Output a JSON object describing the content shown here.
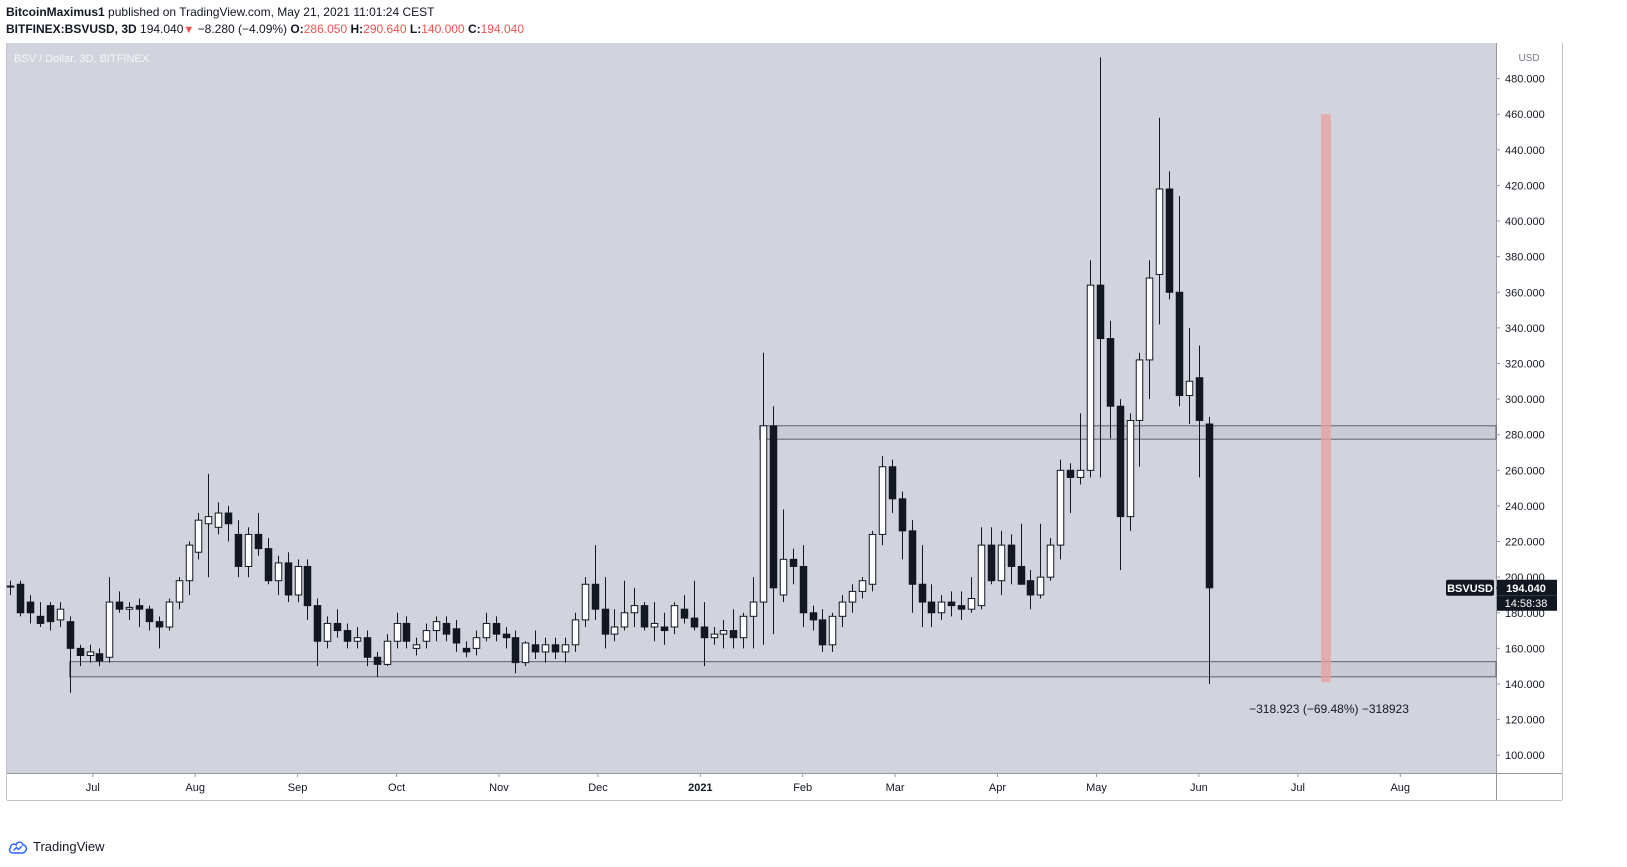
{
  "header": {
    "author": "BitcoinMaximus1",
    "published_text": "published on TradingView.com, May 21, 2021 11:01:24 CEST",
    "symbol": "BITFINEX:BSVUSD, 3D",
    "last": "194.040",
    "change": "−8.280 (−4.09%)",
    "o_label": "O:",
    "o_value": "286.050",
    "h_label": "H:",
    "h_value": "290.640",
    "l_label": "L:",
    "l_value": "140.000",
    "c_label": "C:",
    "c_value": "194.040"
  },
  "footer": {
    "brand": "TradingView"
  },
  "colors": {
    "plot_bg": "#d1d4dc",
    "candle_up_fill": "#ffffff",
    "candle_down_fill": "#131722",
    "candle_border": "#131722",
    "zone_fill": "#c9ccd4",
    "zone_border": "#434651",
    "red_zone": "#e8a0a2",
    "label_bg": "#131722",
    "label_text": "#ffffff"
  },
  "chart_data": {
    "type": "candlestick",
    "title": "BSV / Dollar, 3D, BITFINEX",
    "axis_unit": "USD",
    "ylim": [
      90,
      500
    ],
    "y_ticks": [
      100,
      120,
      140,
      160,
      180,
      200,
      220,
      240,
      260,
      280,
      300,
      320,
      340,
      360,
      380,
      400,
      420,
      440,
      460,
      480
    ],
    "y_tick_labels": [
      "100.000",
      "120.000",
      "140.000",
      "160.000",
      "180.000",
      "200.000",
      "220.000",
      "240.000",
      "260.000",
      "280.000",
      "300.000",
      "320.000",
      "340.000",
      "360.000",
      "380.000",
      "400.000",
      "420.000",
      "440.000",
      "460.000",
      "480.000"
    ],
    "x_range": [
      "2020-06-05",
      "2021-08-30"
    ],
    "x_ticks": [
      {
        "label": "Jul",
        "date": "2020-07-01"
      },
      {
        "label": "Aug",
        "date": "2020-08-01"
      },
      {
        "label": "Sep",
        "date": "2020-09-01"
      },
      {
        "label": "Oct",
        "date": "2020-10-01"
      },
      {
        "label": "Nov",
        "date": "2020-11-01"
      },
      {
        "label": "Dec",
        "date": "2020-12-01"
      },
      {
        "label": "2021",
        "date": "2021-01-01"
      },
      {
        "label": "Feb",
        "date": "2021-02-01"
      },
      {
        "label": "Mar",
        "date": "2021-03-01"
      },
      {
        "label": "Apr",
        "date": "2021-04-01"
      },
      {
        "label": "May",
        "date": "2021-05-01"
      },
      {
        "label": "Jun",
        "date": "2021-06-01"
      },
      {
        "label": "Jul",
        "date": "2021-07-01"
      },
      {
        "label": "Aug",
        "date": "2021-08-01"
      }
    ],
    "candles": [
      {
        "date": "2020-06-06",
        "o": 195,
        "h": 198,
        "l": 190,
        "c": 195
      },
      {
        "date": "2020-06-09",
        "o": 196,
        "h": 198,
        "l": 178,
        "c": 180
      },
      {
        "date": "2020-06-12",
        "o": 186,
        "h": 190,
        "l": 174,
        "c": 180
      },
      {
        "date": "2020-06-15",
        "o": 178,
        "h": 186,
        "l": 172,
        "c": 174
      },
      {
        "date": "2020-06-18",
        "o": 184,
        "h": 186,
        "l": 170,
        "c": 175
      },
      {
        "date": "2020-06-21",
        "o": 176,
        "h": 186,
        "l": 172,
        "c": 182
      },
      {
        "date": "2020-06-24",
        "o": 175,
        "h": 178,
        "l": 135,
        "c": 160
      },
      {
        "date": "2020-06-27",
        "o": 160,
        "h": 162,
        "l": 150,
        "c": 156
      },
      {
        "date": "2020-06-30",
        "o": 156,
        "h": 162,
        "l": 152,
        "c": 158
      },
      {
        "date": "2020-07-03",
        "o": 157,
        "h": 160,
        "l": 150,
        "c": 153
      },
      {
        "date": "2020-07-06",
        "o": 155,
        "h": 200,
        "l": 152,
        "c": 186
      },
      {
        "date": "2020-07-09",
        "o": 186,
        "h": 192,
        "l": 180,
        "c": 182
      },
      {
        "date": "2020-07-12",
        "o": 182,
        "h": 186,
        "l": 176,
        "c": 183
      },
      {
        "date": "2020-07-15",
        "o": 184,
        "h": 188,
        "l": 172,
        "c": 182
      },
      {
        "date": "2020-07-18",
        "o": 182,
        "h": 184,
        "l": 170,
        "c": 175
      },
      {
        "date": "2020-07-21",
        "o": 175,
        "h": 178,
        "l": 160,
        "c": 172
      },
      {
        "date": "2020-07-24",
        "o": 172,
        "h": 188,
        "l": 170,
        "c": 186
      },
      {
        "date": "2020-07-27",
        "o": 186,
        "h": 200,
        "l": 182,
        "c": 198
      },
      {
        "date": "2020-07-30",
        "o": 198,
        "h": 220,
        "l": 190,
        "c": 218
      },
      {
        "date": "2020-08-02",
        "o": 214,
        "h": 236,
        "l": 210,
        "c": 232
      },
      {
        "date": "2020-08-05",
        "o": 230,
        "h": 258,
        "l": 200,
        "c": 234
      },
      {
        "date": "2020-08-08",
        "o": 228,
        "h": 242,
        "l": 224,
        "c": 236
      },
      {
        "date": "2020-08-11",
        "o": 236,
        "h": 240,
        "l": 220,
        "c": 230
      },
      {
        "date": "2020-08-14",
        "o": 224,
        "h": 232,
        "l": 200,
        "c": 206
      },
      {
        "date": "2020-08-17",
        "o": 206,
        "h": 228,
        "l": 200,
        "c": 224
      },
      {
        "date": "2020-08-20",
        "o": 224,
        "h": 236,
        "l": 212,
        "c": 216
      },
      {
        "date": "2020-08-23",
        "o": 216,
        "h": 222,
        "l": 196,
        "c": 198
      },
      {
        "date": "2020-08-26",
        "o": 198,
        "h": 212,
        "l": 190,
        "c": 208
      },
      {
        "date": "2020-08-29",
        "o": 208,
        "h": 214,
        "l": 186,
        "c": 190
      },
      {
        "date": "2020-09-01",
        "o": 190,
        "h": 210,
        "l": 186,
        "c": 206
      },
      {
        "date": "2020-09-04",
        "o": 206,
        "h": 210,
        "l": 176,
        "c": 184
      },
      {
        "date": "2020-09-07",
        "o": 184,
        "h": 188,
        "l": 150,
        "c": 164
      },
      {
        "date": "2020-09-10",
        "o": 164,
        "h": 178,
        "l": 160,
        "c": 174
      },
      {
        "date": "2020-09-13",
        "o": 174,
        "h": 182,
        "l": 166,
        "c": 170
      },
      {
        "date": "2020-09-16",
        "o": 170,
        "h": 174,
        "l": 160,
        "c": 164
      },
      {
        "date": "2020-09-19",
        "o": 164,
        "h": 172,
        "l": 160,
        "c": 166
      },
      {
        "date": "2020-09-22",
        "o": 166,
        "h": 170,
        "l": 150,
        "c": 155
      },
      {
        "date": "2020-09-25",
        "o": 155,
        "h": 158,
        "l": 144,
        "c": 151
      },
      {
        "date": "2020-09-28",
        "o": 151,
        "h": 168,
        "l": 150,
        "c": 164
      },
      {
        "date": "2020-10-01",
        "o": 164,
        "h": 180,
        "l": 160,
        "c": 174
      },
      {
        "date": "2020-10-04",
        "o": 174,
        "h": 178,
        "l": 160,
        "c": 164
      },
      {
        "date": "2020-10-07",
        "o": 160,
        "h": 166,
        "l": 156,
        "c": 162
      },
      {
        "date": "2020-10-10",
        "o": 164,
        "h": 174,
        "l": 160,
        "c": 170
      },
      {
        "date": "2020-10-13",
        "o": 170,
        "h": 178,
        "l": 164,
        "c": 175
      },
      {
        "date": "2020-10-16",
        "o": 174,
        "h": 178,
        "l": 164,
        "c": 168
      },
      {
        "date": "2020-10-19",
        "o": 171,
        "h": 176,
        "l": 158,
        "c": 163
      },
      {
        "date": "2020-10-22",
        "o": 160,
        "h": 164,
        "l": 155,
        "c": 158
      },
      {
        "date": "2020-10-25",
        "o": 160,
        "h": 170,
        "l": 156,
        "c": 166
      },
      {
        "date": "2020-10-28",
        "o": 166,
        "h": 180,
        "l": 164,
        "c": 174
      },
      {
        "date": "2020-10-31",
        "o": 174,
        "h": 178,
        "l": 164,
        "c": 168
      },
      {
        "date": "2020-11-03",
        "o": 168,
        "h": 172,
        "l": 160,
        "c": 166
      },
      {
        "date": "2020-11-06",
        "o": 166,
        "h": 170,
        "l": 146,
        "c": 152
      },
      {
        "date": "2020-11-09",
        "o": 152,
        "h": 164,
        "l": 150,
        "c": 163
      },
      {
        "date": "2020-11-12",
        "o": 162,
        "h": 170,
        "l": 154,
        "c": 158
      },
      {
        "date": "2020-11-15",
        "o": 158,
        "h": 166,
        "l": 152,
        "c": 162
      },
      {
        "date": "2020-11-18",
        "o": 162,
        "h": 166,
        "l": 154,
        "c": 158
      },
      {
        "date": "2020-11-21",
        "o": 158,
        "h": 166,
        "l": 152,
        "c": 162
      },
      {
        "date": "2020-11-24",
        "o": 162,
        "h": 180,
        "l": 158,
        "c": 176
      },
      {
        "date": "2020-11-27",
        "o": 176,
        "h": 200,
        "l": 172,
        "c": 196
      },
      {
        "date": "2020-11-30",
        "o": 196,
        "h": 218,
        "l": 176,
        "c": 182
      },
      {
        "date": "2020-12-03",
        "o": 182,
        "h": 200,
        "l": 160,
        "c": 168
      },
      {
        "date": "2020-12-06",
        "o": 168,
        "h": 182,
        "l": 164,
        "c": 172
      },
      {
        "date": "2020-12-09",
        "o": 172,
        "h": 198,
        "l": 170,
        "c": 180
      },
      {
        "date": "2020-12-12",
        "o": 180,
        "h": 194,
        "l": 172,
        "c": 184
      },
      {
        "date": "2020-12-15",
        "o": 184,
        "h": 186,
        "l": 170,
        "c": 172
      },
      {
        "date": "2020-12-18",
        "o": 172,
        "h": 186,
        "l": 164,
        "c": 174
      },
      {
        "date": "2020-12-21",
        "o": 172,
        "h": 180,
        "l": 162,
        "c": 170
      },
      {
        "date": "2020-12-24",
        "o": 172,
        "h": 186,
        "l": 168,
        "c": 184
      },
      {
        "date": "2020-12-27",
        "o": 182,
        "h": 190,
        "l": 174,
        "c": 177
      },
      {
        "date": "2020-12-30",
        "o": 177,
        "h": 198,
        "l": 170,
        "c": 172
      },
      {
        "date": "2021-01-02",
        "o": 172,
        "h": 186,
        "l": 150,
        "c": 166
      },
      {
        "date": "2021-01-05",
        "o": 166,
        "h": 172,
        "l": 162,
        "c": 168
      },
      {
        "date": "2021-01-08",
        "o": 168,
        "h": 176,
        "l": 160,
        "c": 170
      },
      {
        "date": "2021-01-11",
        "o": 170,
        "h": 182,
        "l": 160,
        "c": 166
      },
      {
        "date": "2021-01-14",
        "o": 166,
        "h": 180,
        "l": 160,
        "c": 178
      },
      {
        "date": "2021-01-17",
        "o": 178,
        "h": 200,
        "l": 160,
        "c": 186
      },
      {
        "date": "2021-01-20",
        "o": 186,
        "h": 326,
        "l": 162,
        "c": 285
      },
      {
        "date": "2021-01-23",
        "o": 285,
        "h": 296,
        "l": 168,
        "c": 194
      },
      {
        "date": "2021-01-26",
        "o": 190,
        "h": 238,
        "l": 186,
        "c": 210
      },
      {
        "date": "2021-01-29",
        "o": 210,
        "h": 216,
        "l": 196,
        "c": 206
      },
      {
        "date": "2021-02-01",
        "o": 206,
        "h": 218,
        "l": 172,
        "c": 180
      },
      {
        "date": "2021-02-04",
        "o": 180,
        "h": 184,
        "l": 170,
        "c": 176
      },
      {
        "date": "2021-02-07",
        "o": 176,
        "h": 182,
        "l": 158,
        "c": 162
      },
      {
        "date": "2021-02-10",
        "o": 162,
        "h": 180,
        "l": 158,
        "c": 178
      },
      {
        "date": "2021-02-13",
        "o": 178,
        "h": 190,
        "l": 172,
        "c": 186
      },
      {
        "date": "2021-02-16",
        "o": 186,
        "h": 196,
        "l": 180,
        "c": 192
      },
      {
        "date": "2021-02-19",
        "o": 192,
        "h": 200,
        "l": 188,
        "c": 198
      },
      {
        "date": "2021-02-22",
        "o": 196,
        "h": 226,
        "l": 192,
        "c": 224
      },
      {
        "date": "2021-02-25",
        "o": 224,
        "h": 268,
        "l": 218,
        "c": 262
      },
      {
        "date": "2021-02-28",
        "o": 262,
        "h": 266,
        "l": 236,
        "c": 244
      },
      {
        "date": "2021-03-03",
        "o": 244,
        "h": 248,
        "l": 210,
        "c": 226
      },
      {
        "date": "2021-03-06",
        "o": 226,
        "h": 232,
        "l": 180,
        "c": 196
      },
      {
        "date": "2021-03-09",
        "o": 196,
        "h": 218,
        "l": 172,
        "c": 186
      },
      {
        "date": "2021-03-12",
        "o": 186,
        "h": 196,
        "l": 172,
        "c": 180
      },
      {
        "date": "2021-03-15",
        "o": 180,
        "h": 190,
        "l": 176,
        "c": 186
      },
      {
        "date": "2021-03-18",
        "o": 186,
        "h": 192,
        "l": 178,
        "c": 184
      },
      {
        "date": "2021-03-21",
        "o": 184,
        "h": 192,
        "l": 176,
        "c": 182
      },
      {
        "date": "2021-03-24",
        "o": 182,
        "h": 200,
        "l": 180,
        "c": 188
      },
      {
        "date": "2021-03-27",
        "o": 184,
        "h": 228,
        "l": 182,
        "c": 218
      },
      {
        "date": "2021-03-30",
        "o": 218,
        "h": 228,
        "l": 196,
        "c": 198
      },
      {
        "date": "2021-04-02",
        "o": 198,
        "h": 226,
        "l": 190,
        "c": 218
      },
      {
        "date": "2021-04-05",
        "o": 218,
        "h": 224,
        "l": 196,
        "c": 206
      },
      {
        "date": "2021-04-08",
        "o": 206,
        "h": 230,
        "l": 198,
        "c": 196
      },
      {
        "date": "2021-04-11",
        "o": 198,
        "h": 204,
        "l": 182,
        "c": 190
      },
      {
        "date": "2021-04-14",
        "o": 190,
        "h": 230,
        "l": 188,
        "c": 200
      },
      {
        "date": "2021-04-17",
        "o": 200,
        "h": 222,
        "l": 198,
        "c": 218
      },
      {
        "date": "2021-04-20",
        "o": 218,
        "h": 266,
        "l": 210,
        "c": 260
      },
      {
        "date": "2021-04-23",
        "o": 260,
        "h": 264,
        "l": 236,
        "c": 256
      },
      {
        "date": "2021-04-26",
        "o": 256,
        "h": 292,
        "l": 252,
        "c": 260
      },
      {
        "date": "2021-04-29",
        "o": 260,
        "h": 378,
        "l": 256,
        "c": 364
      },
      {
        "date": "2021-05-02",
        "o": 364,
        "h": 492,
        "l": 256,
        "c": 334
      },
      {
        "date": "2021-05-05",
        "o": 334,
        "h": 344,
        "l": 278,
        "c": 296
      },
      {
        "date": "2021-05-08",
        "o": 296,
        "h": 300,
        "l": 204,
        "c": 234
      },
      {
        "date": "2021-05-11",
        "o": 234,
        "h": 292,
        "l": 226,
        "c": 288
      },
      {
        "date": "2021-05-14",
        "o": 288,
        "h": 326,
        "l": 262,
        "c": 322
      },
      {
        "date": "2021-05-17",
        "o": 322,
        "h": 378,
        "l": 300,
        "c": 368
      },
      {
        "date": "2021-05-20",
        "o": 370,
        "h": 458,
        "l": 342,
        "c": 418
      },
      {
        "date": "2021-05-23",
        "o": 418,
        "h": 428,
        "l": 356,
        "c": 360
      },
      {
        "date": "2021-05-26",
        "o": 360,
        "h": 414,
        "l": 296,
        "c": 302
      },
      {
        "date": "2021-05-29",
        "o": 302,
        "h": 340,
        "l": 286,
        "c": 310
      },
      {
        "date": "2021-06-01",
        "o": 312,
        "h": 330,
        "l": 256,
        "c": 288
      },
      {
        "date": "2021-06-04",
        "o": 286,
        "h": 290,
        "l": 140,
        "c": 194
      }
    ],
    "support_zones": [
      {
        "low": 277.5,
        "high": 285.0,
        "from": "2021-01-19"
      },
      {
        "low": 144.0,
        "high": 152.5,
        "from": "2020-06-24"
      }
    ],
    "measure_zone": {
      "from": "2021-07-08",
      "to": "2021-07-11",
      "low": 141,
      "high": 460
    },
    "measure_label": "−318.923 (−69.48%) −318923",
    "price_tag": {
      "symbol": "BSVUSD",
      "value": 194.04,
      "value_text": "194.040",
      "countdown": "14:58:38"
    }
  }
}
